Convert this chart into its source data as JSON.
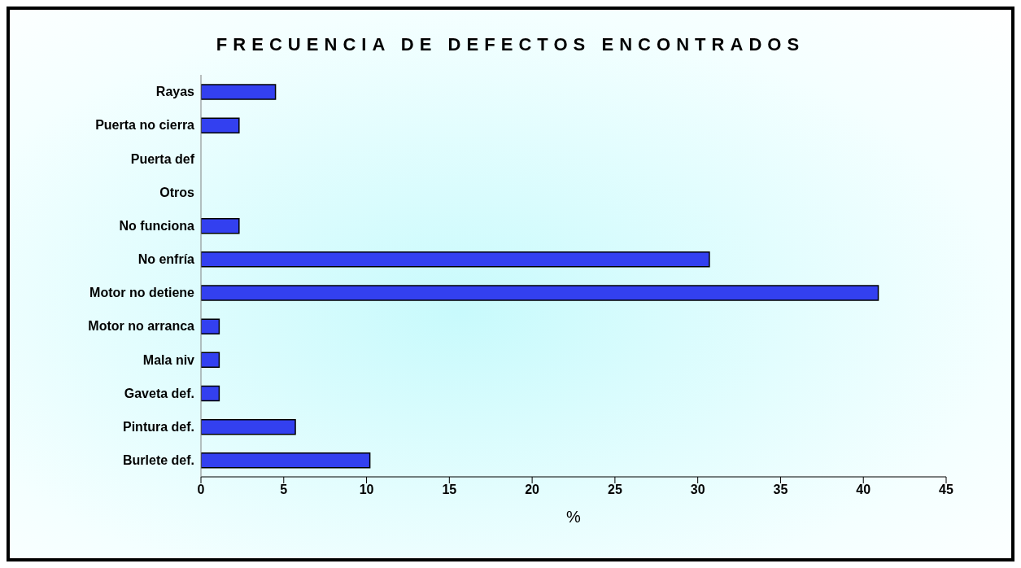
{
  "chart_data": {
    "type": "bar",
    "orientation": "horizontal",
    "title": "FRECUENCIA DE DEFECTOS ENCONTRADOS",
    "xlabel": "%",
    "categories": [
      "Rayas",
      "Puerta no cierra",
      "Puerta def",
      "Otros",
      "No funciona",
      "No enfría",
      "Motor no detiene",
      "Motor no arranca",
      "Mala niv",
      "Gaveta def.",
      "Pintura def.",
      "Burlete def."
    ],
    "values": [
      4.5,
      2.3,
      0,
      0,
      2.3,
      30.7,
      40.9,
      1.1,
      1.1,
      1.1,
      5.7,
      10.2
    ],
    "color": "#3340f0",
    "xlim": [
      0,
      45
    ],
    "xticks": [
      0,
      5,
      10,
      15,
      20,
      25,
      30,
      35,
      40,
      45
    ],
    "grid": false
  }
}
